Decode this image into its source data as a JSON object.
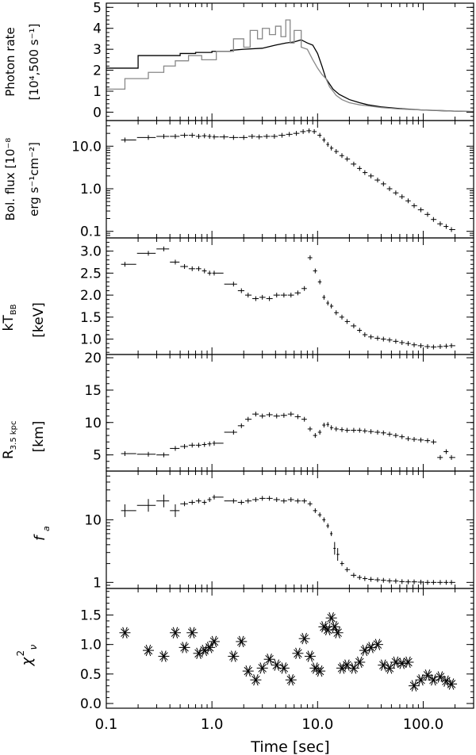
{
  "chart_data": {
    "type": "multi-panel",
    "shared_x": {
      "label": "Time [sec]",
      "scale": "log",
      "range": [
        0.1,
        300
      ],
      "tick_labels": [
        "0.1",
        "1.0",
        "10.0",
        "100.0"
      ],
      "tick_values": [
        0.1,
        1,
        10,
        100
      ]
    },
    "panels": [
      {
        "id": "photon",
        "type": "line",
        "ylabel_lines": [
          "Photon rate",
          "[10⁴,500 s⁻¹]"
        ],
        "ylim": [
          -0.4,
          5.2
        ],
        "yscale": "linear",
        "tick_labels": [
          "0",
          "1",
          "2",
          "3",
          "4",
          "5"
        ],
        "tick_values": [
          0,
          1,
          2,
          3,
          4,
          5
        ],
        "series": [
          {
            "color": "#000000",
            "x": [
              0.1,
              0.2,
              0.2,
              0.5,
              0.5,
              0.7,
              0.7,
              1.0,
              1.0,
              1.5,
              1.5,
              2.0,
              3.0,
              4.0,
              5.0,
              6.0,
              7.0,
              8.0,
              9.0,
              10.0,
              11.0,
              12.0,
              14.0,
              16.0,
              20.0,
              25.0,
              30.0,
              40.0,
              60.0,
              100.0,
              150.0,
              200.0,
              300.0
            ],
            "y": [
              2.1,
              2.1,
              2.7,
              2.7,
              2.8,
              2.8,
              2.85,
              2.85,
              2.9,
              2.9,
              2.95,
              3.0,
              3.05,
              3.2,
              3.3,
              3.35,
              3.45,
              3.3,
              3.2,
              2.8,
              2.2,
              1.6,
              1.1,
              0.85,
              0.6,
              0.45,
              0.35,
              0.25,
              0.17,
              0.1,
              0.07,
              0.05,
              0.03
            ]
          },
          {
            "color": "#888888",
            "x": [
              0.1,
              0.15,
              0.15,
              0.25,
              0.25,
              0.35,
              0.35,
              0.45,
              0.45,
              0.6,
              0.6,
              0.8,
              0.8,
              1.1,
              1.1,
              1.6,
              1.6,
              2.0,
              2.0,
              2.3,
              2.3,
              2.7,
              2.7,
              3.0,
              3.0,
              3.5,
              3.5,
              4.0,
              4.0,
              4.5,
              4.5,
              5.0,
              5.0,
              5.5,
              5.5,
              6.0,
              6.0,
              7.0,
              7.0,
              8.0,
              9.0,
              10.0,
              11.0,
              12.0,
              13.0,
              14.0,
              15.0,
              17.0,
              20.0,
              25.0,
              30.0,
              40.0,
              60.0,
              100.0,
              150.0,
              200.0,
              300.0
            ],
            "y": [
              1.1,
              1.1,
              1.6,
              1.6,
              1.9,
              1.9,
              2.2,
              2.2,
              2.45,
              2.45,
              2.7,
              2.7,
              2.5,
              2.5,
              2.9,
              2.9,
              3.5,
              3.5,
              3.1,
              3.1,
              3.9,
              3.9,
              3.5,
              3.5,
              4.0,
              4.0,
              3.7,
              3.7,
              4.1,
              4.1,
              3.6,
              3.6,
              4.4,
              4.4,
              3.3,
              3.3,
              3.9,
              3.9,
              3.1,
              3.0,
              2.5,
              2.1,
              1.8,
              1.6,
              1.2,
              1.0,
              0.8,
              0.6,
              0.45,
              0.35,
              0.3,
              0.22,
              0.15,
              0.1,
              0.08,
              0.05,
              0.03
            ]
          }
        ]
      },
      {
        "id": "flux",
        "type": "errorbar",
        "ylabel_lines": [
          "Bol. flux [10⁻⁸",
          "erg s⁻¹cm⁻²]"
        ],
        "yscale": "log",
        "ylim": [
          0.07,
          40
        ],
        "tick_labels": [
          "0.1",
          "1.0",
          "10.0"
        ],
        "tick_values": [
          0.1,
          1,
          10
        ],
        "x": [
          0.15,
          0.25,
          0.35,
          0.45,
          0.55,
          0.65,
          0.75,
          0.85,
          0.95,
          1.05,
          1.3,
          1.6,
          2.0,
          2.4,
          2.8,
          3.3,
          3.9,
          4.6,
          5.4,
          6.3,
          7.3,
          8.3,
          9.3,
          10.5,
          11.5,
          12.5,
          13.5,
          15,
          17,
          19,
          22,
          25,
          28,
          32,
          37,
          42,
          48,
          55,
          63,
          72,
          82,
          95,
          110,
          125,
          145,
          165,
          185
        ],
        "y": [
          14,
          16,
          17,
          17,
          18,
          18,
          17,
          17.5,
          17,
          16.5,
          16.5,
          16,
          16,
          17,
          16.5,
          17,
          17,
          18,
          19,
          20,
          22,
          23,
          22,
          18,
          14,
          11,
          9,
          7.5,
          6,
          5,
          3.8,
          3.0,
          2.4,
          2.0,
          1.6,
          1.3,
          1.0,
          0.8,
          0.65,
          0.52,
          0.4,
          0.32,
          0.25,
          0.19,
          0.15,
          0.13,
          0.11
        ]
      },
      {
        "id": "kt",
        "type": "errorbar",
        "ylabel_lines": [
          "kT",
          "[keV]"
        ],
        "ylabel_sub": "BB",
        "yscale": "linear",
        "ylim": [
          0.65,
          3.3
        ],
        "tick_labels": [
          "1.0",
          "1.5",
          "2.0",
          "2.5",
          "3.0"
        ],
        "tick_values": [
          1,
          1.5,
          2,
          2.5,
          3
        ],
        "x": [
          0.15,
          0.25,
          0.35,
          0.45,
          0.55,
          0.65,
          0.75,
          0.85,
          0.95,
          1.05,
          1.6,
          1.9,
          2.2,
          2.6,
          3.0,
          3.5,
          4.1,
          4.8,
          5.6,
          6.5,
          7.5,
          8.5,
          9.5,
          10.5,
          11.5,
          12.5,
          13.5,
          15,
          17,
          19,
          22,
          25,
          28,
          32,
          37,
          42,
          48,
          55,
          63,
          72,
          82,
          95,
          110,
          125,
          145,
          165,
          185
        ],
        "y": [
          2.7,
          2.95,
          3.05,
          2.75,
          2.65,
          2.6,
          2.6,
          2.55,
          2.5,
          2.5,
          2.25,
          2.1,
          2.0,
          1.92,
          1.95,
          1.92,
          2.0,
          2.0,
          2.0,
          2.05,
          2.15,
          2.85,
          2.55,
          2.3,
          1.95,
          1.82,
          1.75,
          1.6,
          1.5,
          1.4,
          1.3,
          1.2,
          1.1,
          1.05,
          1.02,
          1.0,
          0.98,
          0.95,
          0.92,
          0.9,
          0.87,
          0.85,
          0.83,
          0.82,
          0.83,
          0.84,
          0.85
        ]
      },
      {
        "id": "radius",
        "type": "errorbar",
        "ylabel_lines": [
          "R",
          "[km]"
        ],
        "ylabel_sub": "3.5 kpc",
        "yscale": "linear",
        "ylim": [
          2.5,
          20.5
        ],
        "tick_labels": [
          "5",
          "10",
          "15",
          "20"
        ],
        "tick_values": [
          5,
          10,
          15,
          20
        ],
        "x": [
          0.15,
          0.25,
          0.35,
          0.45,
          0.55,
          0.65,
          0.75,
          0.85,
          0.95,
          1.05,
          1.6,
          1.9,
          2.2,
          2.6,
          3.0,
          3.5,
          4.1,
          4.8,
          5.6,
          6.5,
          7.5,
          8.5,
          9.5,
          10.5,
          11.5,
          12.5,
          13.5,
          15,
          17,
          19,
          22,
          25,
          28,
          32,
          37,
          42,
          48,
          55,
          63,
          72,
          82,
          95,
          110,
          125,
          145,
          165,
          185
        ],
        "y": [
          5.2,
          5.1,
          5.0,
          6.0,
          6.3,
          6.5,
          6.5,
          6.6,
          6.7,
          6.8,
          8.5,
          9.5,
          10.5,
          11.3,
          11.0,
          11.2,
          11.0,
          11.1,
          11.3,
          10.9,
          10.5,
          9.0,
          8.0,
          8.5,
          9.6,
          9.7,
          9.2,
          9.0,
          8.9,
          8.8,
          8.8,
          8.8,
          8.7,
          8.6,
          8.5,
          8.4,
          8.2,
          8.0,
          7.8,
          7.5,
          7.4,
          7.3,
          7.2,
          7.0,
          4.6,
          5.5,
          4.6
        ]
      },
      {
        "id": "fa",
        "type": "errorbar",
        "ylabel_lines": [
          "f_a"
        ],
        "yscale": "log",
        "ylim": [
          0.8,
          60
        ],
        "tick_labels": [
          "1",
          "10"
        ],
        "tick_values": [
          1,
          10
        ],
        "x": [
          0.15,
          0.25,
          0.35,
          0.45,
          0.55,
          0.65,
          0.75,
          0.85,
          0.95,
          1.05,
          1.6,
          1.9,
          2.2,
          2.6,
          3.0,
          3.5,
          4.1,
          4.8,
          5.6,
          6.5,
          7.5,
          8.5,
          9.5,
          10.5,
          11.5,
          12.5,
          13.5,
          14.5,
          15.5,
          17,
          19,
          22,
          25,
          28,
          32,
          37,
          42,
          48,
          55,
          63,
          72,
          82,
          95,
          110,
          125,
          145,
          165,
          185
        ],
        "y": [
          14,
          17,
          20,
          14,
          18,
          19,
          20,
          19,
          21,
          23,
          20,
          19,
          20,
          21,
          22,
          22,
          21,
          20,
          21,
          20,
          20,
          18,
          14,
          12,
          10,
          8,
          6,
          3.5,
          2.8,
          2.0,
          1.6,
          1.3,
          1.2,
          1.15,
          1.12,
          1.1,
          1.08,
          1.06,
          1.05,
          1.03,
          1.02,
          1.02,
          1.01,
          1.0,
          1.0,
          1.0,
          1.0,
          1.0
        ]
      },
      {
        "id": "chi",
        "type": "scatter",
        "marker": "asterisk",
        "ylabel_lines": [
          "χ²ν"
        ],
        "yscale": "linear",
        "ylim": [
          -0.08,
          1.95
        ],
        "tick_labels": [
          "0.0",
          "0.5",
          "1.0",
          "1.5"
        ],
        "tick_values": [
          0,
          0.5,
          1,
          1.5
        ],
        "x": [
          0.15,
          0.25,
          0.35,
          0.45,
          0.55,
          0.65,
          0.75,
          0.85,
          0.95,
          1.05,
          1.6,
          1.9,
          2.2,
          2.6,
          3.0,
          3.5,
          4.1,
          4.8,
          5.6,
          6.5,
          7.5,
          8.5,
          9.5,
          10.5,
          11.5,
          12.5,
          13.5,
          14.5,
          15.5,
          17,
          19,
          22,
          25,
          28,
          32,
          37,
          42,
          48,
          55,
          63,
          72,
          82,
          95,
          110,
          125,
          145,
          165,
          185
        ],
        "y": [
          1.2,
          0.9,
          0.8,
          1.2,
          0.95,
          1.2,
          0.85,
          0.9,
          0.95,
          1.05,
          0.8,
          1.05,
          0.55,
          0.4,
          0.6,
          0.75,
          0.65,
          0.6,
          0.4,
          0.85,
          1.1,
          0.8,
          0.6,
          0.55,
          1.3,
          1.25,
          1.45,
          1.3,
          1.2,
          0.6,
          0.65,
          0.6,
          0.7,
          0.9,
          0.95,
          1.0,
          0.65,
          0.6,
          0.7,
          0.68,
          0.7,
          0.3,
          0.4,
          0.48,
          0.4,
          0.45,
          0.38,
          0.33
        ]
      }
    ]
  }
}
